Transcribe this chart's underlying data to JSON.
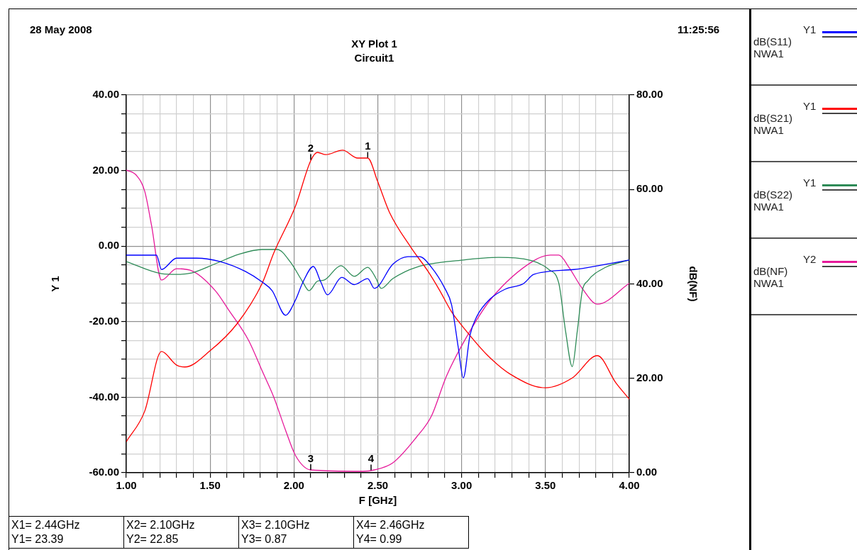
{
  "chart_data": {
    "type": "line",
    "title": "XY Plot 1",
    "subtitle": "Circuit1",
    "xlabel": "F [GHz]",
    "ylabel": "Y 1",
    "y2label": "dB(NF)",
    "xlim": [
      1,
      4
    ],
    "xticks": [
      {
        "value": 1,
        "label": "1.00"
      },
      {
        "value": 1.1,
        "label": null
      },
      {
        "value": 1.2,
        "label": null
      },
      {
        "value": 1.3,
        "label": null
      },
      {
        "value": 1.4,
        "label": null
      },
      {
        "value": 1.5,
        "label": "1.50"
      },
      {
        "value": 1.6,
        "label": null
      },
      {
        "value": 1.7,
        "label": null
      },
      {
        "value": 1.8,
        "label": null
      },
      {
        "value": 1.9,
        "label": null
      },
      {
        "value": 2,
        "label": "2.00"
      },
      {
        "value": 2.1,
        "label": null
      },
      {
        "value": 2.2,
        "label": null
      },
      {
        "value": 2.3,
        "label": null
      },
      {
        "value": 2.4,
        "label": null
      },
      {
        "value": 2.5,
        "label": "2.50"
      },
      {
        "value": 2.6,
        "label": null
      },
      {
        "value": 2.7,
        "label": null
      },
      {
        "value": 2.8,
        "label": null
      },
      {
        "value": 2.9,
        "label": null
      },
      {
        "value": 3,
        "label": "3.00"
      },
      {
        "value": 3.1,
        "label": null
      },
      {
        "value": 3.2,
        "label": null
      },
      {
        "value": 3.3,
        "label": null
      },
      {
        "value": 3.4,
        "label": null
      },
      {
        "value": 3.5,
        "label": "3.50"
      },
      {
        "value": 3.6,
        "label": null
      },
      {
        "value": 3.7,
        "label": null
      },
      {
        "value": 3.8,
        "label": null
      },
      {
        "value": 3.9,
        "label": null
      },
      {
        "value": 4,
        "label": "4.00"
      }
    ],
    "ylim": [
      -60,
      40
    ],
    "yticks": [
      {
        "value": -60,
        "label": "-60.00"
      },
      {
        "value": -55,
        "label": null
      },
      {
        "value": -50,
        "label": null
      },
      {
        "value": -45,
        "label": null
      },
      {
        "value": -40,
        "label": "-40.00"
      },
      {
        "value": -35,
        "label": null
      },
      {
        "value": -30,
        "label": null
      },
      {
        "value": -25,
        "label": null
      },
      {
        "value": -20,
        "label": "-20.00"
      },
      {
        "value": -15,
        "label": null
      },
      {
        "value": -10,
        "label": null
      },
      {
        "value": -5,
        "label": null
      },
      {
        "value": 0,
        "label": "0.00"
      },
      {
        "value": 5,
        "label": null
      },
      {
        "value": 10,
        "label": null
      },
      {
        "value": 15,
        "label": null
      },
      {
        "value": 20,
        "label": "20.00"
      },
      {
        "value": 25,
        "label": null
      },
      {
        "value": 30,
        "label": null
      },
      {
        "value": 35,
        "label": null
      },
      {
        "value": 40,
        "label": "40.00"
      }
    ],
    "y2lim": [
      0,
      80
    ],
    "y2ticks": [
      {
        "value": 0,
        "label": "0.00"
      },
      {
        "value": 20,
        "label": "20.00"
      },
      {
        "value": 40,
        "label": "40.00"
      },
      {
        "value": 60,
        "label": "60.00"
      },
      {
        "value": 80,
        "label": "80.00"
      }
    ],
    "grid": true,
    "legend": "right",
    "line_style": "solid",
    "series": [
      {
        "name": "Y1 dB(S11) NWA1",
        "color": "#0000ff",
        "x": [
          1.0,
          1.18,
          1.21,
          1.3,
          1.42,
          1.56,
          1.71,
          1.81,
          1.87,
          1.95,
          2.01,
          2.05,
          2.116,
          2.16,
          2.2,
          2.285,
          2.36,
          2.44,
          2.48,
          2.59,
          2.68,
          2.75,
          2.82,
          2.9,
          2.94,
          2.98,
          3.01,
          3.05,
          3.09,
          3.17,
          3.26,
          3.37,
          3.43,
          3.67,
          3.86,
          4.0
        ],
        "values": [
          -2.4,
          -2.4,
          -6.2,
          -3.2,
          -3.2,
          -4.1,
          -6.7,
          -9.5,
          -11.8,
          -18.3,
          -14.2,
          -9.9,
          -5.4,
          -9.5,
          -12.9,
          -8.3,
          -10.2,
          -8.6,
          -11.2,
          -4.8,
          -2.8,
          -2.8,
          -5.6,
          -11.2,
          -15.5,
          -26.8,
          -34.9,
          -23.6,
          -18.7,
          -14,
          -11.4,
          -9.9,
          -7.5,
          -6.2,
          -4.8,
          -3.7
        ]
      },
      {
        "name": "Y1 dB(S21) NWA1",
        "color": "#ff0000",
        "x": [
          1.0,
          1.11,
          1.21,
          1.3,
          1.35,
          1.5,
          1.66,
          1.81,
          1.88,
          2.01,
          2.1,
          2.14,
          2.19,
          2.29,
          2.38,
          2.44,
          2.5,
          2.57,
          2.7,
          2.8,
          2.87,
          2.94,
          3.01,
          3.15,
          3.29,
          3.5,
          3.66,
          3.81,
          3.92,
          4.0
        ],
        "values": [
          -51.8,
          -43.7,
          -27.9,
          -31.5,
          -32,
          -27.7,
          -20.6,
          -9.9,
          -1.8,
          10.7,
          22.6,
          24.8,
          24.2,
          25.4,
          23.3,
          23.3,
          17,
          8.9,
          -0.5,
          -6.7,
          -11.8,
          -17.4,
          -21.5,
          -28.7,
          -33.9,
          -37.5,
          -34.9,
          -29,
          -36.2,
          -40.5
        ]
      },
      {
        "name": "Y1 dB(S22) NWA1",
        "color": "#2e8b57",
        "x": [
          1.0,
          1.21,
          1.3,
          1.39,
          1.53,
          1.67,
          1.81,
          1.9,
          1.98,
          2.05,
          2.09,
          2.14,
          2.18,
          2.28,
          2.36,
          2.44,
          2.49,
          2.52,
          2.59,
          2.73,
          3.01,
          3.22,
          3.42,
          3.52,
          3.58,
          3.62,
          3.66,
          3.69,
          3.72,
          3.75,
          3.86,
          4.0
        ],
        "values": [
          -4.1,
          -7.3,
          -7.5,
          -7.1,
          -4.7,
          -2.2,
          -0.9,
          -0.9,
          -4.3,
          -9.3,
          -11.8,
          -9.3,
          -9.0,
          -5.2,
          -8.0,
          -5.6,
          -8.6,
          -11.2,
          -8.6,
          -5.6,
          -3.7,
          -3.0,
          -3.9,
          -6.2,
          -9.9,
          -22.5,
          -31.9,
          -22.5,
          -11.8,
          -9.3,
          -5.6,
          -3.7
        ]
      },
      {
        "name": "Y2 dB(NF) NWA1",
        "color": "#e6199a",
        "axis": "y2",
        "x": [
          1.0,
          1.06,
          1.11,
          1.15,
          1.21,
          1.3,
          1.38,
          1.53,
          1.61,
          1.73,
          1.81,
          1.88,
          1.95,
          2.01,
          2.1,
          2.41,
          2.48,
          2.59,
          2.73,
          2.82,
          2.91,
          3.05,
          3.18,
          3.43,
          3.53,
          3.58,
          3.64,
          3.72,
          3.81,
          4.0
        ],
        "values": [
          64.1,
          63,
          59.6,
          52.5,
          40.8,
          43.2,
          42.9,
          38.6,
          34.5,
          28,
          21.6,
          16,
          9,
          3.6,
          0.6,
          0.3,
          0.6,
          2.1,
          7.5,
          12,
          20.5,
          30,
          37,
          44.9,
          46.1,
          46.1,
          43.5,
          39,
          35.7,
          40.1
        ]
      }
    ],
    "annotations": [
      "28 May 2008",
      "11:25:56",
      {
        "text": "1",
        "x": 2.44,
        "y": 23.39
      },
      {
        "text": "2",
        "x": 2.1,
        "y": 22.85
      },
      "3",
      "4",
      "X1= 2.44GHz",
      "Y1= 23.39",
      "X2= 2.10GHz",
      "Y2= 22.85",
      "X3= 2.10GHz",
      "Y3= 0.87",
      "X4= 2.46GHz",
      "Y4= 0.99"
    ]
  }
}
